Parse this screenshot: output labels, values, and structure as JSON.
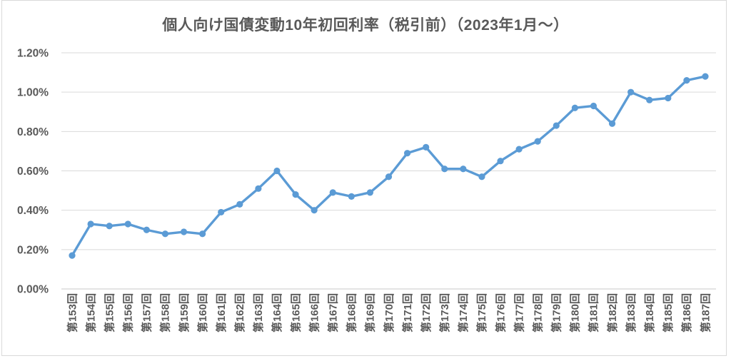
{
  "chart_data": {
    "type": "line",
    "title": "個人向け国債変動10年初回利率（税引前）（2023年1月～）",
    "xlabel": "",
    "ylabel": "",
    "categories": [
      "第153回",
      "第154回",
      "第155回",
      "第156回",
      "第157回",
      "第158回",
      "第159回",
      "第160回",
      "第161回",
      "第162回",
      "第163回",
      "第164回",
      "第165回",
      "第166回",
      "第167回",
      "第168回",
      "第169回",
      "第170回",
      "第171回",
      "第172回",
      "第173回",
      "第174回",
      "第175回",
      "第176回",
      "第177回",
      "第178回",
      "第179回",
      "第180回",
      "第181回",
      "第182回",
      "第183回",
      "第184回",
      "第185回",
      "第186回",
      "第187回"
    ],
    "values": [
      0.17,
      0.33,
      0.32,
      0.33,
      0.3,
      0.28,
      0.29,
      0.28,
      0.39,
      0.43,
      0.51,
      0.6,
      0.48,
      0.4,
      0.49,
      0.47,
      0.49,
      0.57,
      0.69,
      0.72,
      0.61,
      0.61,
      0.57,
      0.65,
      0.71,
      0.75,
      0.83,
      0.92,
      0.93,
      0.84,
      1.0,
      0.96,
      0.97,
      1.06,
      1.08
    ],
    "value_unit": "%",
    "ylim": [
      0,
      1.2
    ],
    "ytick_step": 0.2,
    "ytick_labels": [
      "0.00%",
      "0.20%",
      "0.40%",
      "0.60%",
      "0.80%",
      "1.00%",
      "1.20%"
    ],
    "grid": true,
    "legend": "none",
    "marker": "circle",
    "colors": {
      "line": "#5B9BD5",
      "marker": "#5B9BD5",
      "grid": "#D9D9D9",
      "axis": "#C9C9C9",
      "text": "#595959",
      "title": "#595959",
      "frame": "#D9D9D9",
      "background": "#FFFFFF"
    }
  }
}
